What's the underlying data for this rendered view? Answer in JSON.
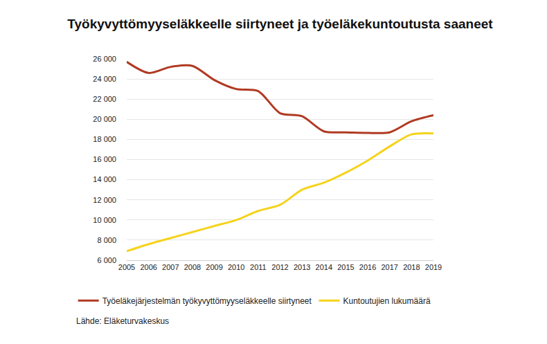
{
  "chart_data": {
    "type": "line",
    "title": "Työkyvyttömyyseläkkeelle siirtyneet ja työeläkekuntoutusta saaneet",
    "source": "Lähde: Eläketurvakeskus",
    "x": [
      2005,
      2006,
      2007,
      2008,
      2009,
      2010,
      2011,
      2012,
      2013,
      2014,
      2015,
      2016,
      2017,
      2018,
      2019
    ],
    "series": [
      {
        "name": "Työeläkejärjestelmän työkyvyttömyyseläkkeelle siirtyneet",
        "color": "#b03a22",
        "values": [
          25700,
          24600,
          25200,
          25300,
          23900,
          23000,
          22800,
          20600,
          20300,
          18800,
          18700,
          18650,
          18700,
          19800,
          20400
        ]
      },
      {
        "name": "Kuntoutujien lukumäärä",
        "color": "#f5d31c",
        "values": [
          6900,
          7600,
          8200,
          8800,
          9400,
          10000,
          10900,
          11500,
          13000,
          13700,
          14700,
          15900,
          17300,
          18500,
          18600
        ]
      }
    ],
    "xlim": [
      2005,
      2019
    ],
    "xticks": [
      2005,
      2006,
      2007,
      2008,
      2009,
      2010,
      2011,
      2012,
      2013,
      2014,
      2015,
      2016,
      2017,
      2018,
      2019
    ],
    "ylim": [
      6000,
      26000
    ],
    "yticks": [
      {
        "value": 6000,
        "label": "6 000"
      },
      {
        "value": 8000,
        "label": "8 000"
      },
      {
        "value": 10000,
        "label": "10 000"
      },
      {
        "value": 12000,
        "label": "12 000"
      },
      {
        "value": 14000,
        "label": "14 000"
      },
      {
        "value": 16000,
        "label": "16 000"
      },
      {
        "value": 18000,
        "label": "18 000"
      },
      {
        "value": 20000,
        "label": "20 000"
      },
      {
        "value": 22000,
        "label": "22 000"
      },
      {
        "value": 24000,
        "label": "24 000"
      },
      {
        "value": 26000,
        "label": "26 000"
      }
    ],
    "grid": true,
    "legend": "bottom"
  }
}
